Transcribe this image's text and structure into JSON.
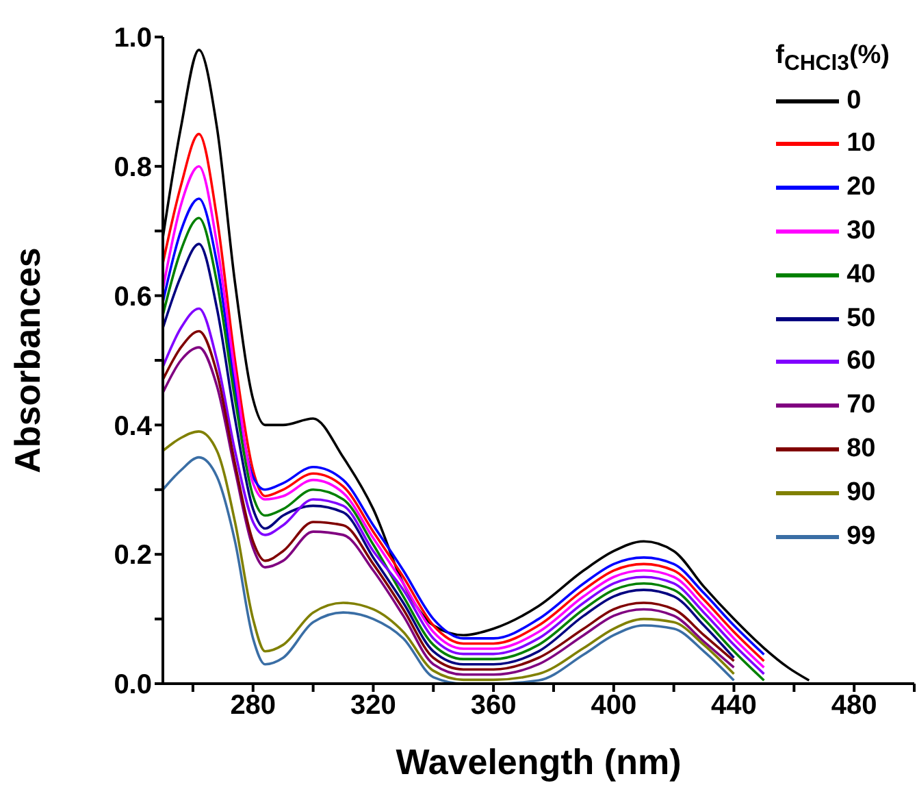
{
  "chart_data": {
    "type": "line",
    "xlabel": "Wavelength (nm)",
    "ylabel": "Absorbances",
    "legend_title": "f$_{CHCl3}$(%)",
    "legend": "top right",
    "x": [
      250,
      256,
      262,
      268,
      274,
      280,
      284,
      290,
      300,
      310,
      320,
      330,
      340,
      350,
      360,
      375,
      390,
      400,
      410,
      420,
      430,
      440,
      450,
      458,
      465
    ],
    "xlim": [
      250,
      500
    ],
    "xticks": [
      {
        "value": 260,
        "label": null
      },
      280,
      {
        "value": 300,
        "label": null
      },
      320,
      {
        "value": 340,
        "label": null
      },
      360,
      {
        "value": 380,
        "label": null
      },
      400,
      {
        "value": 420,
        "label": null
      },
      440,
      {
        "value": 460,
        "label": null
      },
      480,
      {
        "value": 500,
        "label": null
      }
    ],
    "ylim": [
      0,
      1.0
    ],
    "yticks": [
      {
        "value": 0,
        "label": "0.0"
      },
      {
        "value": 0.1,
        "label": null
      },
      {
        "value": 0.2,
        "label": "0.2"
      },
      {
        "value": 0.3,
        "label": null
      },
      {
        "value": 0.4,
        "label": "0.4"
      },
      {
        "value": 0.5,
        "label": null
      },
      {
        "value": 0.6,
        "label": "0.6"
      },
      {
        "value": 0.7,
        "label": null
      },
      {
        "value": 0.8,
        "label": "0.8"
      },
      {
        "value": 0.9,
        "label": null
      },
      {
        "value": 1.0,
        "label": "1.0"
      }
    ],
    "series": [
      {
        "name": "0",
        "color": "#000000",
        "values": [
          0.69,
          0.86,
          0.98,
          0.86,
          0.62,
          0.44,
          0.4,
          0.4,
          0.41,
          0.35,
          0.27,
          0.155,
          0.09,
          0.075,
          0.085,
          0.12,
          0.175,
          0.205,
          0.22,
          0.205,
          0.15,
          0.1,
          0.055,
          0.025,
          0.005
        ]
      },
      {
        "name": "10",
        "color": "#ff0000",
        "values": [
          0.65,
          0.77,
          0.85,
          0.72,
          0.5,
          0.33,
          0.29,
          0.3,
          0.325,
          0.305,
          0.235,
          0.165,
          0.09,
          0.062,
          0.062,
          0.09,
          0.145,
          0.175,
          0.185,
          0.175,
          0.13,
          0.08,
          0.035,
          null,
          null
        ]
      },
      {
        "name": "20",
        "color": "#0000ff",
        "values": [
          0.59,
          0.7,
          0.75,
          0.65,
          0.46,
          0.32,
          0.3,
          0.31,
          0.335,
          0.315,
          0.245,
          0.175,
          0.1,
          0.07,
          0.07,
          0.1,
          0.155,
          0.185,
          0.195,
          0.185,
          0.14,
          0.09,
          0.045,
          null,
          null
        ]
      },
      {
        "name": "30",
        "color": "#ff00ff",
        "values": [
          0.61,
          0.74,
          0.8,
          0.68,
          0.48,
          0.31,
          0.285,
          0.29,
          0.315,
          0.295,
          0.225,
          0.155,
          0.08,
          0.054,
          0.054,
          0.08,
          0.135,
          0.165,
          0.175,
          0.165,
          0.12,
          0.07,
          0.025,
          null,
          null
        ]
      },
      {
        "name": "40",
        "color": "#008000",
        "values": [
          0.57,
          0.67,
          0.72,
          0.62,
          0.44,
          0.29,
          0.26,
          0.27,
          0.3,
          0.285,
          0.215,
          0.135,
          0.06,
          0.038,
          0.038,
          0.06,
          0.115,
          0.145,
          0.155,
          0.145,
          0.1,
          0.05,
          0.005,
          null,
          null
        ]
      },
      {
        "name": "50",
        "color": "#000080",
        "values": [
          0.55,
          0.63,
          0.68,
          0.58,
          0.41,
          0.27,
          0.24,
          0.26,
          0.275,
          0.265,
          0.195,
          0.125,
          0.05,
          0.03,
          0.03,
          0.05,
          0.105,
          0.135,
          0.145,
          0.135,
          0.09,
          0.04,
          null,
          null,
          null
        ]
      },
      {
        "name": "60",
        "color": "#8000ff",
        "values": [
          0.49,
          0.55,
          0.58,
          0.5,
          0.36,
          0.25,
          0.23,
          0.245,
          0.285,
          0.275,
          0.205,
          0.145,
          0.07,
          0.046,
          0.046,
          0.07,
          0.125,
          0.155,
          0.165,
          0.155,
          0.11,
          0.06,
          0.015,
          null,
          null
        ]
      },
      {
        "name": "70",
        "color": "#800080",
        "values": [
          0.45,
          0.5,
          0.52,
          0.46,
          0.33,
          0.21,
          0.18,
          0.19,
          0.235,
          0.23,
          0.175,
          0.105,
          0.03,
          0.014,
          0.014,
          0.03,
          0.075,
          0.105,
          0.115,
          0.105,
          0.065,
          0.025,
          null,
          null,
          null
        ]
      },
      {
        "name": "80",
        "color": "#800000",
        "values": [
          0.47,
          0.52,
          0.545,
          0.48,
          0.34,
          0.22,
          0.19,
          0.205,
          0.25,
          0.245,
          0.185,
          0.115,
          0.04,
          0.022,
          0.022,
          0.04,
          0.085,
          0.115,
          0.125,
          0.115,
          0.075,
          0.035,
          null,
          null,
          null
        ]
      },
      {
        "name": "90",
        "color": "#808000",
        "values": [
          0.36,
          0.38,
          0.39,
          0.36,
          0.25,
          0.1,
          0.05,
          0.06,
          0.11,
          0.125,
          0.115,
          0.08,
          0.02,
          0.006,
          0.006,
          0.015,
          0.055,
          0.085,
          0.1,
          0.095,
          0.06,
          0.015,
          null,
          null,
          null
        ]
      },
      {
        "name": "99",
        "color": "#3a6ea5",
        "values": [
          0.3,
          0.33,
          0.35,
          0.32,
          0.22,
          0.07,
          0.03,
          0.04,
          0.095,
          0.11,
          0.1,
          0.07,
          0.01,
          0,
          0,
          0.005,
          0.045,
          0.075,
          0.09,
          0.085,
          0.05,
          0.005,
          null,
          null,
          null
        ]
      }
    ]
  }
}
